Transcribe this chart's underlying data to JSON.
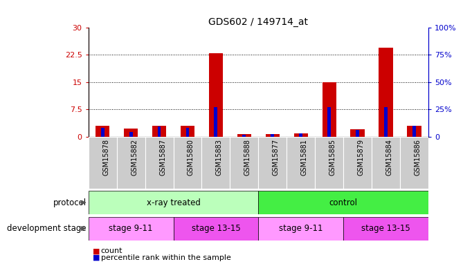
{
  "title": "GDS602 / 149714_at",
  "samples": [
    "GSM15878",
    "GSM15882",
    "GSM15887",
    "GSM15880",
    "GSM15883",
    "GSM15888",
    "GSM15877",
    "GSM15881",
    "GSM15885",
    "GSM15879",
    "GSM15884",
    "GSM15886"
  ],
  "count_values": [
    3.0,
    2.2,
    3.0,
    3.0,
    23.0,
    0.7,
    0.7,
    0.9,
    15.0,
    2.0,
    24.5,
    3.0
  ],
  "percentile_values": [
    8.0,
    4.0,
    9.0,
    8.0,
    27.0,
    1.5,
    2.0,
    3.0,
    27.0,
    6.0,
    27.0,
    10.0
  ],
  "count_color": "#cc0000",
  "percentile_color": "#0000cc",
  "ylim_left": [
    0,
    30
  ],
  "ylim_right": [
    0,
    100
  ],
  "yticks_left": [
    0,
    7.5,
    15,
    22.5,
    30
  ],
  "yticks_right": [
    0,
    25,
    50,
    75,
    100
  ],
  "ytick_labels_left": [
    "0",
    "7.5",
    "15",
    "22.5",
    "30"
  ],
  "ytick_labels_right": [
    "0",
    "25%",
    "50%",
    "75%",
    "100%"
  ],
  "protocol_labels": [
    "x-ray treated",
    "control"
  ],
  "protocol_color_light": "#bbffbb",
  "protocol_color_dark": "#44ee44",
  "stage_labels": [
    "stage 9-11",
    "stage 13-15",
    "stage 9-11",
    "stage 13-15"
  ],
  "stage_ranges": [
    [
      0,
      3
    ],
    [
      3,
      6
    ],
    [
      6,
      9
    ],
    [
      9,
      12
    ]
  ],
  "stage_color_light": "#ff99ff",
  "stage_color_dark": "#ee55ee",
  "bg_color_samples": "#cccccc",
  "legend_count": "count",
  "legend_percentile": "percentile rank within the sample"
}
